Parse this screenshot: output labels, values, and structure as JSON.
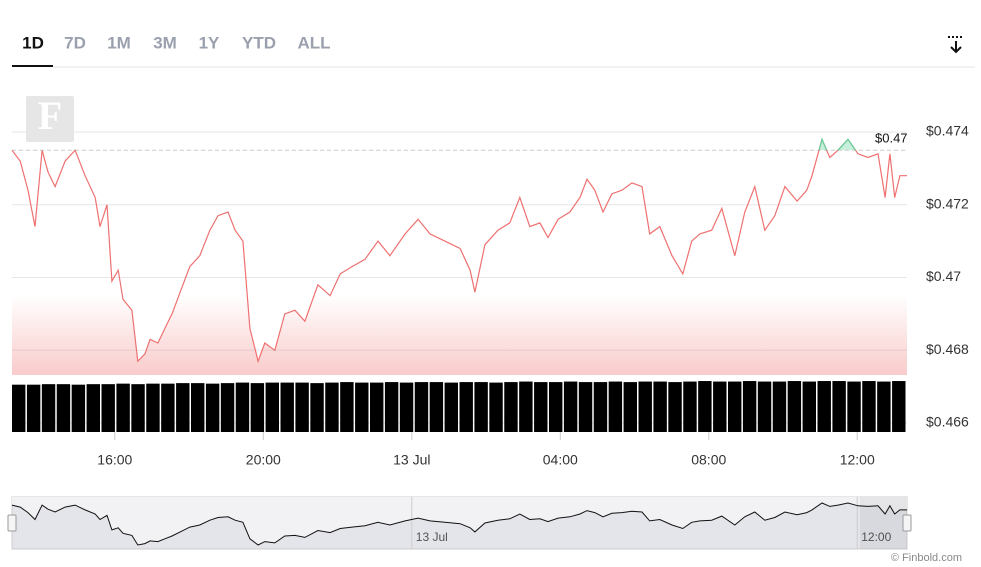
{
  "tabs": [
    "1D",
    "7D",
    "1M",
    "3M",
    "1Y",
    "YTD",
    "ALL"
  ],
  "active_tab": 0,
  "watermark": "F",
  "credit": "© Finbold.com",
  "chart_data": {
    "type": "line",
    "color": "#ef7070",
    "above_color": "#5fd39a",
    "x": [
      13.23,
      13.45,
      13.66,
      13.85,
      14.04,
      14.2,
      14.39,
      14.66,
      14.93,
      15.2,
      15.47,
      15.6,
      15.79,
      15.92,
      16.09,
      16.22,
      16.46,
      16.62,
      16.81,
      16.95,
      17.16,
      17.35,
      17.54,
      17.76,
      18.02,
      18.29,
      18.56,
      18.78,
      19.05,
      19.24,
      19.45,
      19.64,
      19.86,
      20.04,
      20.31,
      20.58,
      20.85,
      21.12,
      21.47,
      21.8,
      22.07,
      22.39,
      22.74,
      23.09,
      23.41,
      23.82,
      24.17,
      24.49,
      24.89,
      25.3,
      25.57,
      25.7,
      25.97,
      26.32,
      26.64,
      26.91,
      27.18,
      27.45,
      27.67,
      27.94,
      28.26,
      28.53,
      28.72,
      28.93,
      29.15,
      29.39,
      29.66,
      29.93,
      30.2,
      30.41,
      30.68,
      31.01,
      31.3,
      31.54,
      31.76,
      32.08,
      32.35,
      32.7,
      32.97,
      33.24,
      33.51,
      33.78,
      34.05,
      34.38,
      34.64,
      34.78,
      35.05,
      35.26,
      35.48,
      35.75,
      36.02,
      36.29,
      36.56,
      36.75,
      36.88,
      37.01,
      37.15,
      37.34
    ],
    "values": [
      0.4735,
      0.4732,
      0.4724,
      0.4714,
      0.4735,
      0.4729,
      0.4725,
      0.4732,
      0.4735,
      0.4728,
      0.4722,
      0.4714,
      0.472,
      0.4699,
      0.4702,
      0.4694,
      0.4691,
      0.4677,
      0.4679,
      0.4683,
      0.4682,
      0.4686,
      0.469,
      0.4696,
      0.4703,
      0.4706,
      0.4713,
      0.4717,
      0.4718,
      0.4713,
      0.471,
      0.4686,
      0.4677,
      0.4682,
      0.468,
      0.469,
      0.4691,
      0.4688,
      0.4698,
      0.4695,
      0.4701,
      0.4703,
      0.4705,
      0.471,
      0.4706,
      0.4712,
      0.4716,
      0.4712,
      0.471,
      0.4708,
      0.4702,
      0.4696,
      0.4709,
      0.4713,
      0.4715,
      0.4722,
      0.4714,
      0.4715,
      0.4711,
      0.4716,
      0.4718,
      0.4722,
      0.4727,
      0.4724,
      0.4718,
      0.4723,
      0.4724,
      0.4726,
      0.4725,
      0.4712,
      0.4714,
      0.4706,
      0.4701,
      0.471,
      0.4712,
      0.4713,
      0.4719,
      0.4706,
      0.4718,
      0.4725,
      0.4713,
      0.4717,
      0.4725,
      0.4721,
      0.4724,
      0.4728,
      0.4738,
      0.4733,
      0.4735,
      0.4738,
      0.4734,
      0.4733,
      0.4734,
      0.4722,
      0.4734,
      0.4722,
      0.4728,
      0.4728
    ],
    "xlim": [
      13.23,
      37.34
    ],
    "xticks": [
      {
        "value": 16,
        "label": "16:00"
      },
      {
        "value": 20,
        "label": "20:00"
      },
      {
        "value": 24,
        "label": "13 Jul"
      },
      {
        "value": 28,
        "label": "04:00"
      },
      {
        "value": 32,
        "label": "08:00"
      },
      {
        "value": 36,
        "label": "12:00"
      }
    ],
    "ylim": [
      0.466,
      0.4751
    ],
    "yticks": [
      {
        "value": 0.466,
        "label": "$0.466"
      },
      {
        "value": 0.468,
        "label": "$0.468"
      },
      {
        "value": 0.47,
        "label": "$0.47"
      },
      {
        "value": 0.472,
        "label": "$0.472"
      },
      {
        "value": 0.474,
        "label": "$0.474"
      }
    ],
    "grid": true,
    "reference_line": {
      "value": 0.4735,
      "label": "$0.47"
    },
    "volume": {
      "color": "#000000",
      "y2lim": [
        0,
        100
      ],
      "values": [
        91,
        91,
        92,
        92,
        91,
        92,
        92,
        93,
        92,
        93,
        93,
        94,
        94,
        93,
        94,
        95,
        94,
        95,
        95,
        95,
        94,
        95,
        96,
        95,
        95,
        96,
        95,
        96,
        96,
        95,
        96,
        96,
        95,
        96,
        97,
        96,
        96,
        97,
        96,
        96,
        97,
        96,
        97,
        97,
        96,
        97,
        98,
        97,
        97,
        98,
        97,
        97,
        98,
        97,
        98,
        98,
        97,
        98,
        97,
        98
      ]
    }
  }
}
